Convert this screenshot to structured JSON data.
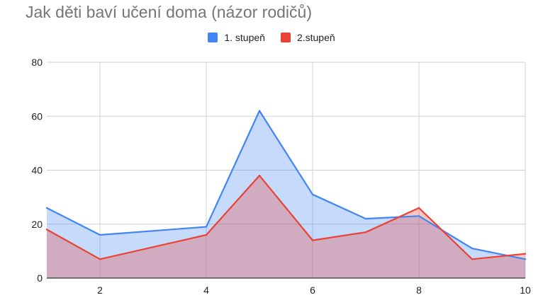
{
  "chart_data": {
    "type": "area",
    "title": "Jak děti baví učení doma (názor rodičů)",
    "xlabel": "",
    "ylabel": "",
    "x": [
      1,
      2,
      4,
      5,
      6,
      7,
      8,
      9,
      10
    ],
    "series": [
      {
        "name": "1. stupeň",
        "color": "#4285f4",
        "values": [
          26,
          16,
          19,
          62,
          31,
          22,
          23,
          11,
          7
        ]
      },
      {
        "name": "2.stupeň",
        "color": "#ea4335",
        "values": [
          18,
          7,
          16,
          38,
          14,
          17,
          26,
          7,
          9
        ]
      }
    ],
    "xlim": [
      1,
      10
    ],
    "ylim": [
      0,
      80
    ],
    "xticks": [
      2,
      4,
      6,
      8,
      10
    ],
    "yticks": [
      0,
      20,
      40,
      60,
      80
    ],
    "grid": true,
    "legend_position": "top"
  }
}
